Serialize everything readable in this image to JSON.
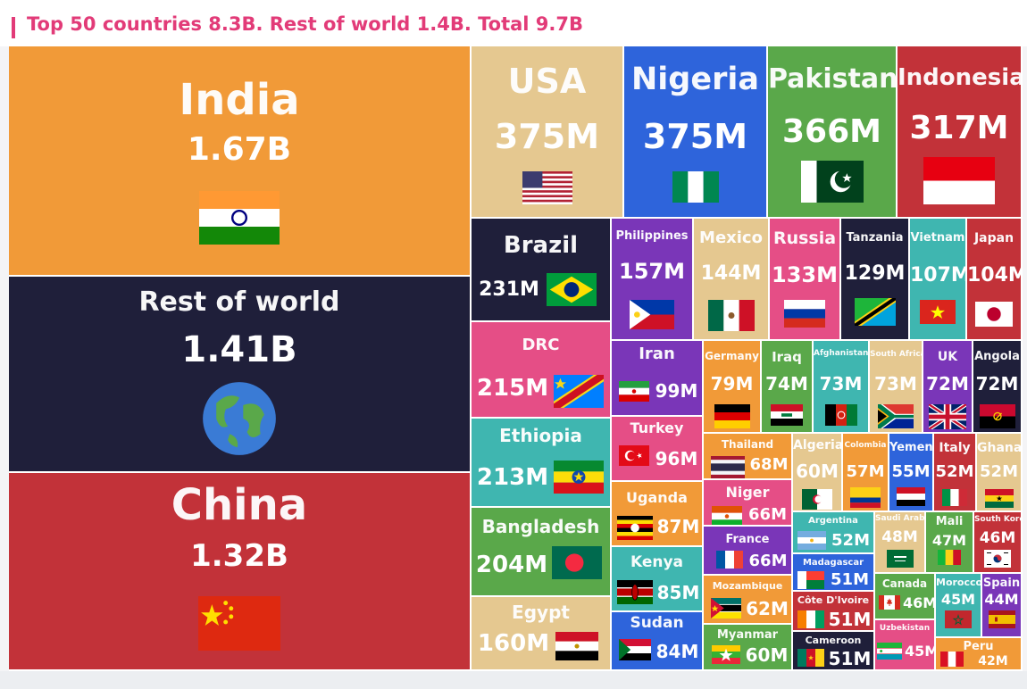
{
  "header": {
    "title": "Top 50 countries 8.3B. Rest of world 1.4B. Total 9.7B"
  },
  "chart_data": {
    "type": "treemap",
    "title": "Top 50 countries 8.3B. Rest of world 1.4B. Total 9.7B",
    "unit": "population",
    "items": [
      {
        "name": "India",
        "label": "1.67B",
        "value": 1670,
        "color": "#f19a38",
        "flag": "india"
      },
      {
        "name": "Rest of world",
        "label": "1.41B",
        "value": 1410,
        "color": "#1f1f3a",
        "flag": "globe"
      },
      {
        "name": "China",
        "label": "1.32B",
        "value": 1320,
        "color": "#c23239",
        "flag": "china"
      },
      {
        "name": "USA",
        "label": "375M",
        "value": 375,
        "color": "#e5c890",
        "flag": "usa"
      },
      {
        "name": "Nigeria",
        "label": "375M",
        "value": 375,
        "color": "#2e64db",
        "flag": "nigeria"
      },
      {
        "name": "Pakistan",
        "label": "366M",
        "value": 366,
        "color": "#5aa84a",
        "flag": "pakistan"
      },
      {
        "name": "Indonesia",
        "label": "317M",
        "value": 317,
        "color": "#c23239",
        "flag": "indonesia"
      },
      {
        "name": "Brazil",
        "label": "231M",
        "value": 231,
        "color": "#1f1f3a",
        "flag": "brazil"
      },
      {
        "name": "DRC",
        "label": "215M",
        "value": 215,
        "color": "#e54e86",
        "flag": "drc"
      },
      {
        "name": "Ethiopia",
        "label": "213M",
        "value": 213,
        "color": "#3fb6b0",
        "flag": "ethiopia"
      },
      {
        "name": "Bangladesh",
        "label": "204M",
        "value": 204,
        "color": "#5aa84a",
        "flag": "bangladesh"
      },
      {
        "name": "Egypt",
        "label": "160M",
        "value": 160,
        "color": "#e5c890",
        "flag": "egypt"
      },
      {
        "name": "Philippines",
        "label": "157M",
        "value": 157,
        "color": "#7a36b8",
        "flag": "philippines"
      },
      {
        "name": "Mexico",
        "label": "144M",
        "value": 144,
        "color": "#e5c890",
        "flag": "mexico"
      },
      {
        "name": "Russia",
        "label": "133M",
        "value": 133,
        "color": "#e54e86",
        "flag": "russia"
      },
      {
        "name": "Tanzania",
        "label": "129M",
        "value": 129,
        "color": "#1f1f3a",
        "flag": "tanzania"
      },
      {
        "name": "Vietnam",
        "label": "107M",
        "value": 107,
        "color": "#3fb6b0",
        "flag": "vietnam"
      },
      {
        "name": "Japan",
        "label": "104M",
        "value": 104,
        "color": "#c23239",
        "flag": "japan"
      },
      {
        "name": "Iran",
        "label": "99M",
        "value": 99,
        "color": "#7a36b8",
        "flag": "iran"
      },
      {
        "name": "Turkey",
        "label": "96M",
        "value": 96,
        "color": "#e54e86",
        "flag": "turkey"
      },
      {
        "name": "Uganda",
        "label": "87M",
        "value": 87,
        "color": "#f19a38",
        "flag": "uganda"
      },
      {
        "name": "Kenya",
        "label": "85M",
        "value": 85,
        "color": "#3fb6b0",
        "flag": "kenya"
      },
      {
        "name": "Sudan",
        "label": "84M",
        "value": 84,
        "color": "#2e64db",
        "flag": "sudan"
      },
      {
        "name": "Germany",
        "label": "79M",
        "value": 79,
        "color": "#f19a38",
        "flag": "germany"
      },
      {
        "name": "Iraq",
        "label": "74M",
        "value": 74,
        "color": "#5aa84a",
        "flag": "iraq"
      },
      {
        "name": "Afghanistan",
        "label": "73M",
        "value": 73,
        "color": "#3fb6b0",
        "flag": "afghanistan"
      },
      {
        "name": "South Africa",
        "label": "73M",
        "value": 73,
        "color": "#e5c890",
        "flag": "southafrica"
      },
      {
        "name": "UK",
        "label": "72M",
        "value": 72,
        "color": "#7a36b8",
        "flag": "uk"
      },
      {
        "name": "Angola",
        "label": "72M",
        "value": 72,
        "color": "#1f1f3a",
        "flag": "angola"
      },
      {
        "name": "Thailand",
        "label": "68M",
        "value": 68,
        "color": "#f19a38",
        "flag": "thailand"
      },
      {
        "name": "Niger",
        "label": "66M",
        "value": 66,
        "color": "#e54e86",
        "flag": "niger"
      },
      {
        "name": "France",
        "label": "66M",
        "value": 66,
        "color": "#7a36b8",
        "flag": "france"
      },
      {
        "name": "Mozambique",
        "label": "62M",
        "value": 62,
        "color": "#f19a38",
        "flag": "mozambique"
      },
      {
        "name": "Myanmar",
        "label": "60M",
        "value": 60,
        "color": "#5aa84a",
        "flag": "myanmar"
      },
      {
        "name": "Algeria",
        "label": "60M",
        "value": 60,
        "color": "#e5c890",
        "flag": "algeria"
      },
      {
        "name": "Colombia",
        "label": "57M",
        "value": 57,
        "color": "#f19a38",
        "flag": "colombia"
      },
      {
        "name": "Yemen",
        "label": "55M",
        "value": 55,
        "color": "#2e64db",
        "flag": "yemen"
      },
      {
        "name": "Italy",
        "label": "52M",
        "value": 52,
        "color": "#c23239",
        "flag": "italy"
      },
      {
        "name": "Ghana",
        "label": "52M",
        "value": 52,
        "color": "#e5c890",
        "flag": "ghana"
      },
      {
        "name": "Argentina",
        "label": "52M",
        "value": 52,
        "color": "#3fb6b0",
        "flag": "argentina"
      },
      {
        "name": "Madagascar",
        "label": "51M",
        "value": 51,
        "color": "#2e64db",
        "flag": "madagascar"
      },
      {
        "name": "Côte D'Ivoire",
        "label": "51M",
        "value": 51,
        "color": "#c23239",
        "flag": "cotedivoire"
      },
      {
        "name": "Cameroon",
        "label": "51M",
        "value": 51,
        "color": "#1f1f3a",
        "flag": "cameroon"
      },
      {
        "name": "Saudi Arabia",
        "label": "48M",
        "value": 48,
        "color": "#e5c890",
        "flag": "saudi"
      },
      {
        "name": "Mali",
        "label": "47M",
        "value": 47,
        "color": "#5aa84a",
        "flag": "mali"
      },
      {
        "name": "South Korea",
        "label": "46M",
        "value": 46,
        "color": "#c23239",
        "flag": "southkorea"
      },
      {
        "name": "Canada",
        "label": "46M",
        "value": 46,
        "color": "#5aa84a",
        "flag": "canada"
      },
      {
        "name": "Uzbekistan",
        "label": "45M",
        "value": 45,
        "color": "#e54e86",
        "flag": "uzbekistan"
      },
      {
        "name": "Morocco",
        "label": "45M",
        "value": 45,
        "color": "#3fb6b0",
        "flag": "morocco"
      },
      {
        "name": "Spain",
        "label": "44M",
        "value": 44,
        "color": "#7a36b8",
        "flag": "spain"
      },
      {
        "name": "Peru",
        "label": "42M",
        "value": 42,
        "color": "#f19a38",
        "flag": "peru"
      }
    ]
  }
}
